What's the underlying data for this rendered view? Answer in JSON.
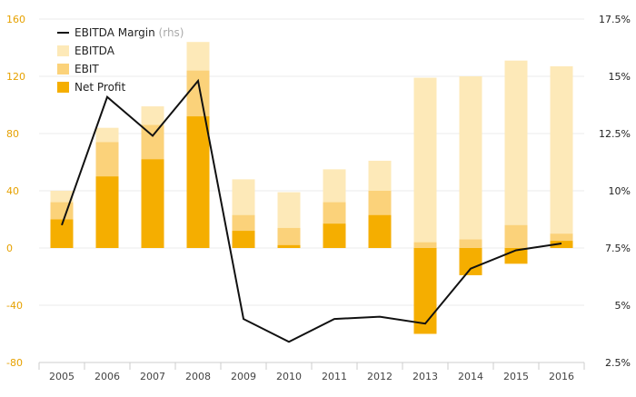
{
  "chart_data": {
    "type": "bar",
    "categories": [
      "2005",
      "2006",
      "2007",
      "2008",
      "2009",
      "2010",
      "2011",
      "2012",
      "2013",
      "2014",
      "2015",
      "2016"
    ],
    "series": [
      {
        "name": "EBITDA",
        "kind": "bar",
        "values": [
          40,
          84,
          99,
          144,
          48,
          39,
          55,
          61,
          119,
          120,
          131,
          127
        ],
        "color": "#fde9b8"
      },
      {
        "name": "EBIT",
        "kind": "bar",
        "values": [
          32,
          74,
          86,
          124,
          23,
          14,
          32,
          40,
          4,
          6,
          16,
          10
        ],
        "color": "#fbd27a"
      },
      {
        "name": "Net Profit",
        "kind": "bar",
        "values": [
          20,
          50,
          62,
          92,
          12,
          2,
          17,
          23,
          -60,
          -19,
          -11,
          5
        ],
        "color": "#f5ae00"
      },
      {
        "name": "EBITDA Margin",
        "name_suffix": "(rhs)",
        "kind": "line",
        "axis": "right",
        "values": [
          8.5,
          14.1,
          12.4,
          14.8,
          4.4,
          3.4,
          4.4,
          4.5,
          4.2,
          6.6,
          7.4,
          7.7
        ],
        "color": "#111111"
      }
    ],
    "y_left": {
      "min": -80,
      "max": 160,
      "ticks": [
        "-80",
        "-40",
        "0",
        "40",
        "80",
        "120",
        "160"
      ],
      "tick_values": [
        -80,
        -40,
        0,
        40,
        80,
        120,
        160
      ]
    },
    "y_right": {
      "min": 2.5,
      "max": 17.5,
      "ticks": [
        "2.5%",
        "5%",
        "7.5%",
        "10%",
        "12.5%",
        "15%",
        "17.5%"
      ],
      "tick_values": [
        2.5,
        5,
        7.5,
        10,
        12.5,
        15,
        17.5
      ]
    },
    "xlabel": "",
    "ylabel": "",
    "grid": true,
    "legend_position": "top-left",
    "colors": {
      "tick_left": "#e6a100",
      "tick_right": "#222222",
      "tick_x": "#444444",
      "grid": "#ebebeb",
      "axis": "#cccccc",
      "legend_muted": "#aaaaaa"
    }
  }
}
